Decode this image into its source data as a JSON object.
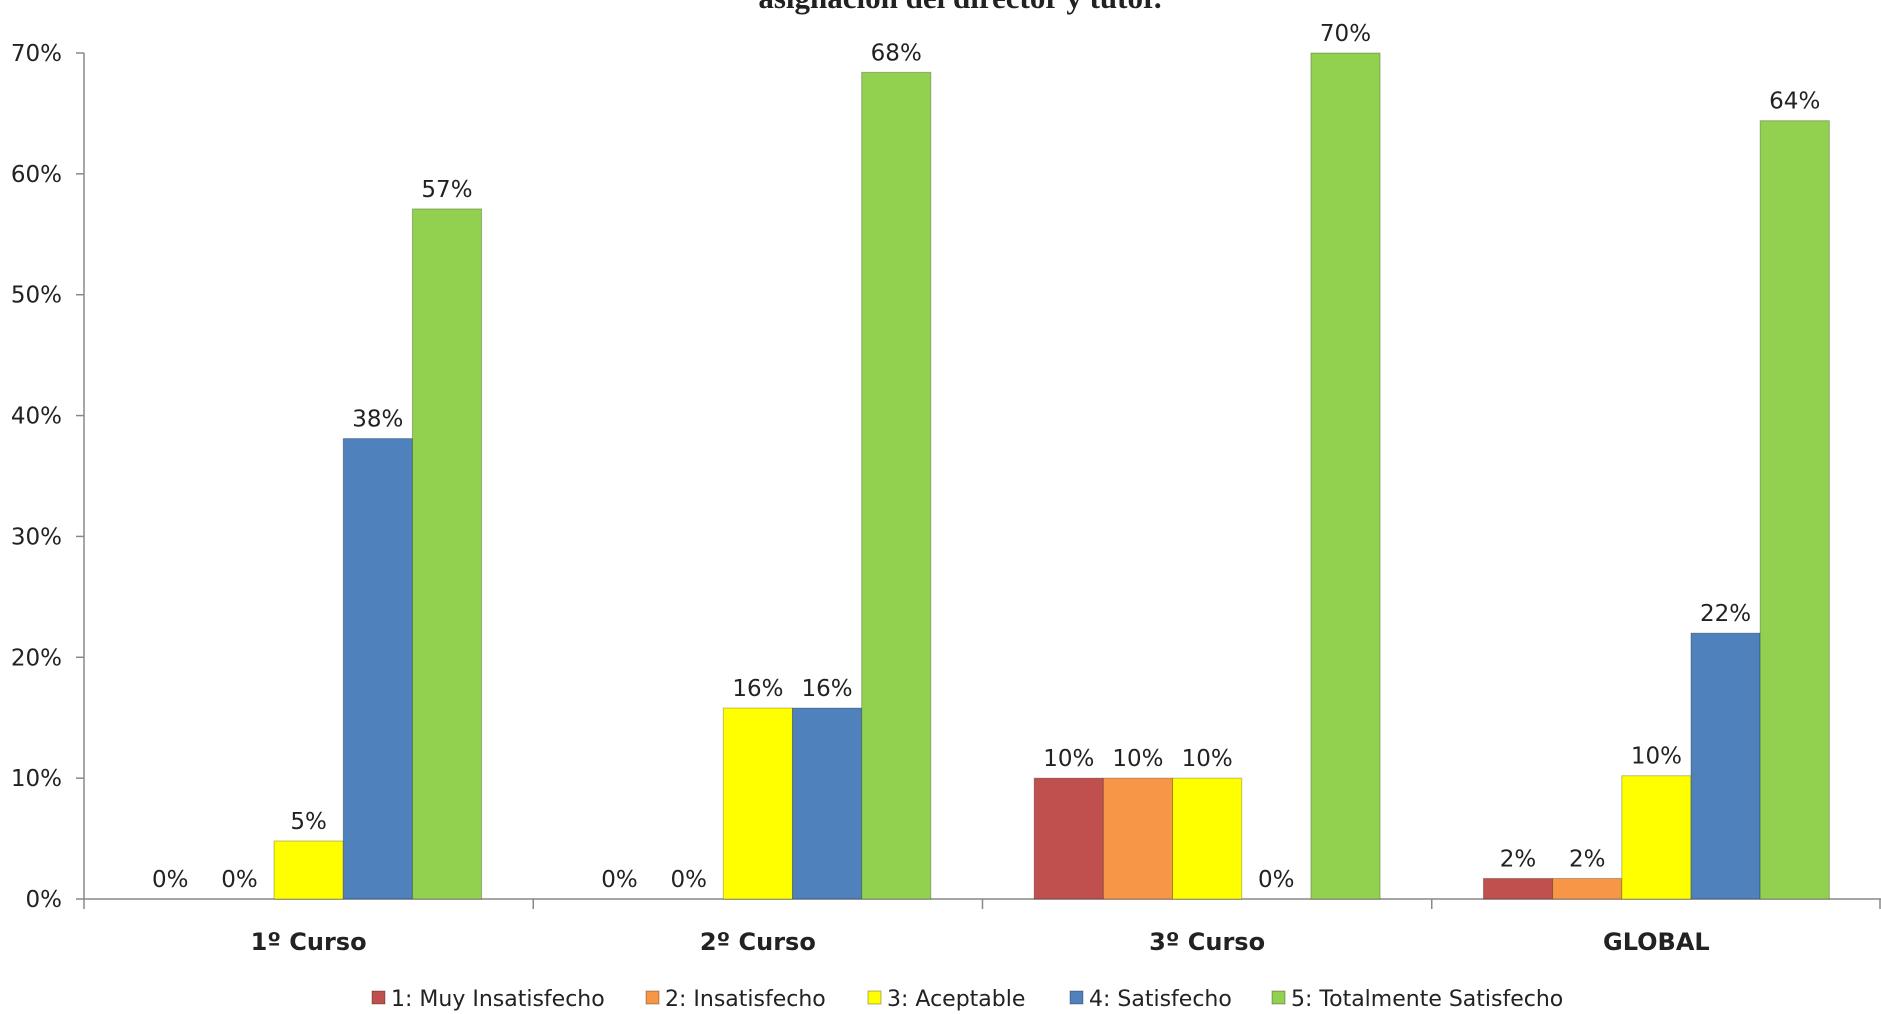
{
  "chart_data": {
    "type": "bar",
    "title": "asignación del director y tutor.",
    "categories": [
      "1º Curso",
      "2º Curso",
      "3º Curso",
      "GLOBAL"
    ],
    "series": [
      {
        "name": "1: Muy Insatisfecho",
        "color": "#c0504d",
        "values": [
          0,
          0,
          10,
          1.7
        ],
        "value_labels": [
          "0%",
          "0%",
          "10%",
          "2%"
        ]
      },
      {
        "name": "2: Insatisfecho",
        "color": "#f79646",
        "values": [
          0,
          0,
          10,
          1.7
        ],
        "value_labels": [
          "0%",
          "0%",
          "10%",
          "2%"
        ]
      },
      {
        "name": "3: Aceptable",
        "color": "#ffff00",
        "values": [
          4.8,
          15.8,
          10,
          10.2
        ],
        "value_labels": [
          "5%",
          "16%",
          "10%",
          "10%"
        ]
      },
      {
        "name": "4: Satisfecho",
        "color": "#4f81bd",
        "values": [
          38.1,
          15.8,
          0,
          22
        ],
        "value_labels": [
          "38%",
          "16%",
          "0%",
          "22%"
        ]
      },
      {
        "name": "5: Totalmente Satisfecho",
        "color": "#92d050",
        "values": [
          57.1,
          68.4,
          70,
          64.4
        ],
        "value_labels": [
          "57%",
          "68%",
          "70%",
          "64%"
        ]
      }
    ],
    "ylim": [
      0,
      70
    ],
    "yticks": [
      {
        "value": 0,
        "label": "0%"
      },
      {
        "value": 10,
        "label": "10%"
      },
      {
        "value": 20,
        "label": "20%"
      },
      {
        "value": 30,
        "label": "30%"
      },
      {
        "value": 40,
        "label": "40%"
      },
      {
        "value": 50,
        "label": "50%"
      },
      {
        "value": 60,
        "label": "60%"
      },
      {
        "value": 70,
        "label": "70%"
      }
    ],
    "grid": false,
    "legend": "bottom"
  }
}
